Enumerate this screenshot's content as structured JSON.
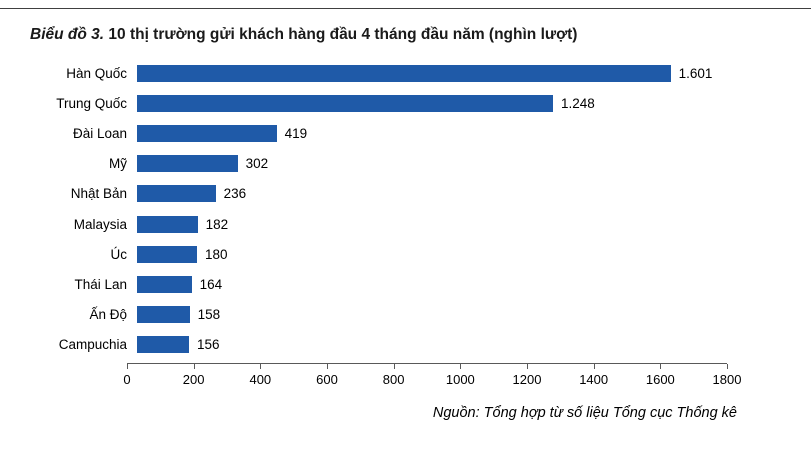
{
  "header": {
    "title_prefix": "Biểu đồ 3.",
    "title_rest": "10 thị trường gửi khách hàng đầu 4 tháng đầu năm  (nghìn lượt)"
  },
  "chart_data": {
    "type": "bar",
    "orientation": "horizontal",
    "title": "Biểu đồ 3. 10 thị trường gửi khách hàng đầu 4 tháng đầu năm (nghìn lượt)",
    "categories": [
      "Hàn Quốc",
      "Trung Quốc",
      "Đài Loan",
      "Mỹ",
      "Nhật Bản",
      "Malaysia",
      "Úc",
      "Thái Lan",
      "Ấn Độ",
      "Campuchia"
    ],
    "values": [
      1601,
      1248,
      419,
      302,
      236,
      182,
      180,
      164,
      158,
      156
    ],
    "value_labels": [
      "1.601",
      "1.248",
      "419",
      "302",
      "236",
      "182",
      "180",
      "164",
      "158",
      "156"
    ],
    "xlim": [
      0,
      1800
    ],
    "x_ticks": [
      0,
      200,
      400,
      600,
      800,
      1000,
      1200,
      1400,
      1600,
      1800
    ],
    "bar_color": "#1F5AA8",
    "grid": false,
    "legend": "none",
    "xlabel": "",
    "ylabel": ""
  },
  "footer": {
    "source": "Nguồn: Tổng hợp từ số liệu Tổng cục Thống kê"
  }
}
